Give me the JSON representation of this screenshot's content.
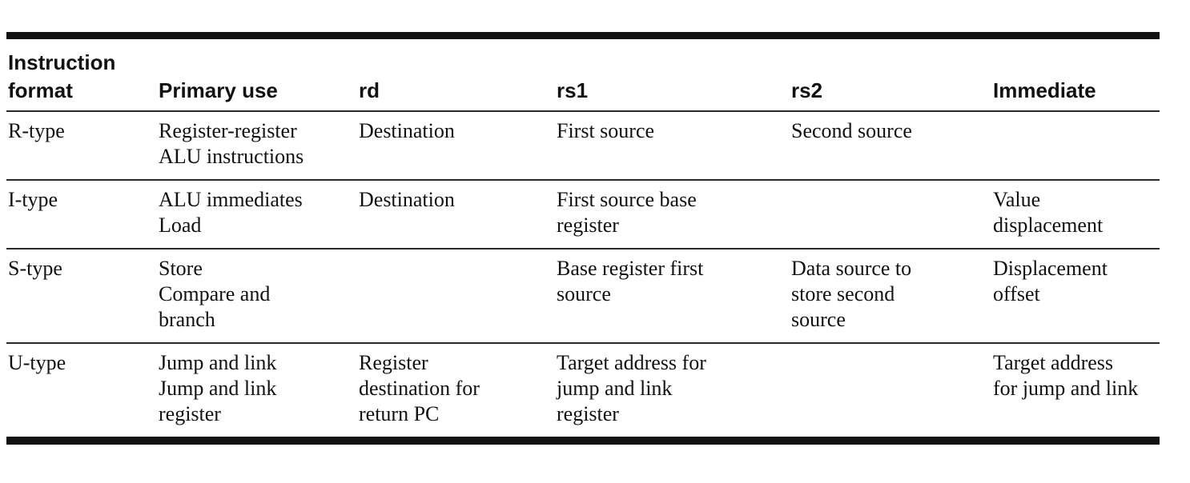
{
  "page": {
    "background": "#ffffff"
  },
  "table": {
    "ink_color": "#111111",
    "thick_border_color": "#121212",
    "thin_rule_color": "#2a2a2a",
    "columns": [
      "Instruction\nformat",
      "Primary use",
      "rd",
      "rs1",
      "rs2",
      "Immediate"
    ],
    "rows": [
      [
        "R-type",
        "Register-register\nALU instructions",
        "Destination",
        "First source",
        "Second source",
        ""
      ],
      [
        "I-type",
        "ALU immediates\nLoad",
        "Destination",
        "First source base\nregister",
        "",
        "Value\ndisplacement"
      ],
      [
        "S-type",
        "Store\nCompare and\nbranch",
        "",
        "Base register first\nsource",
        "Data source to\nstore second\nsource",
        "Displacement\noffset"
      ],
      [
        "U-type",
        "Jump and link\nJump and link\nregister",
        "Register\ndestination for\nreturn PC",
        "Target address for\njump and link\nregister",
        "",
        "Target address\nfor jump and link"
      ]
    ]
  }
}
